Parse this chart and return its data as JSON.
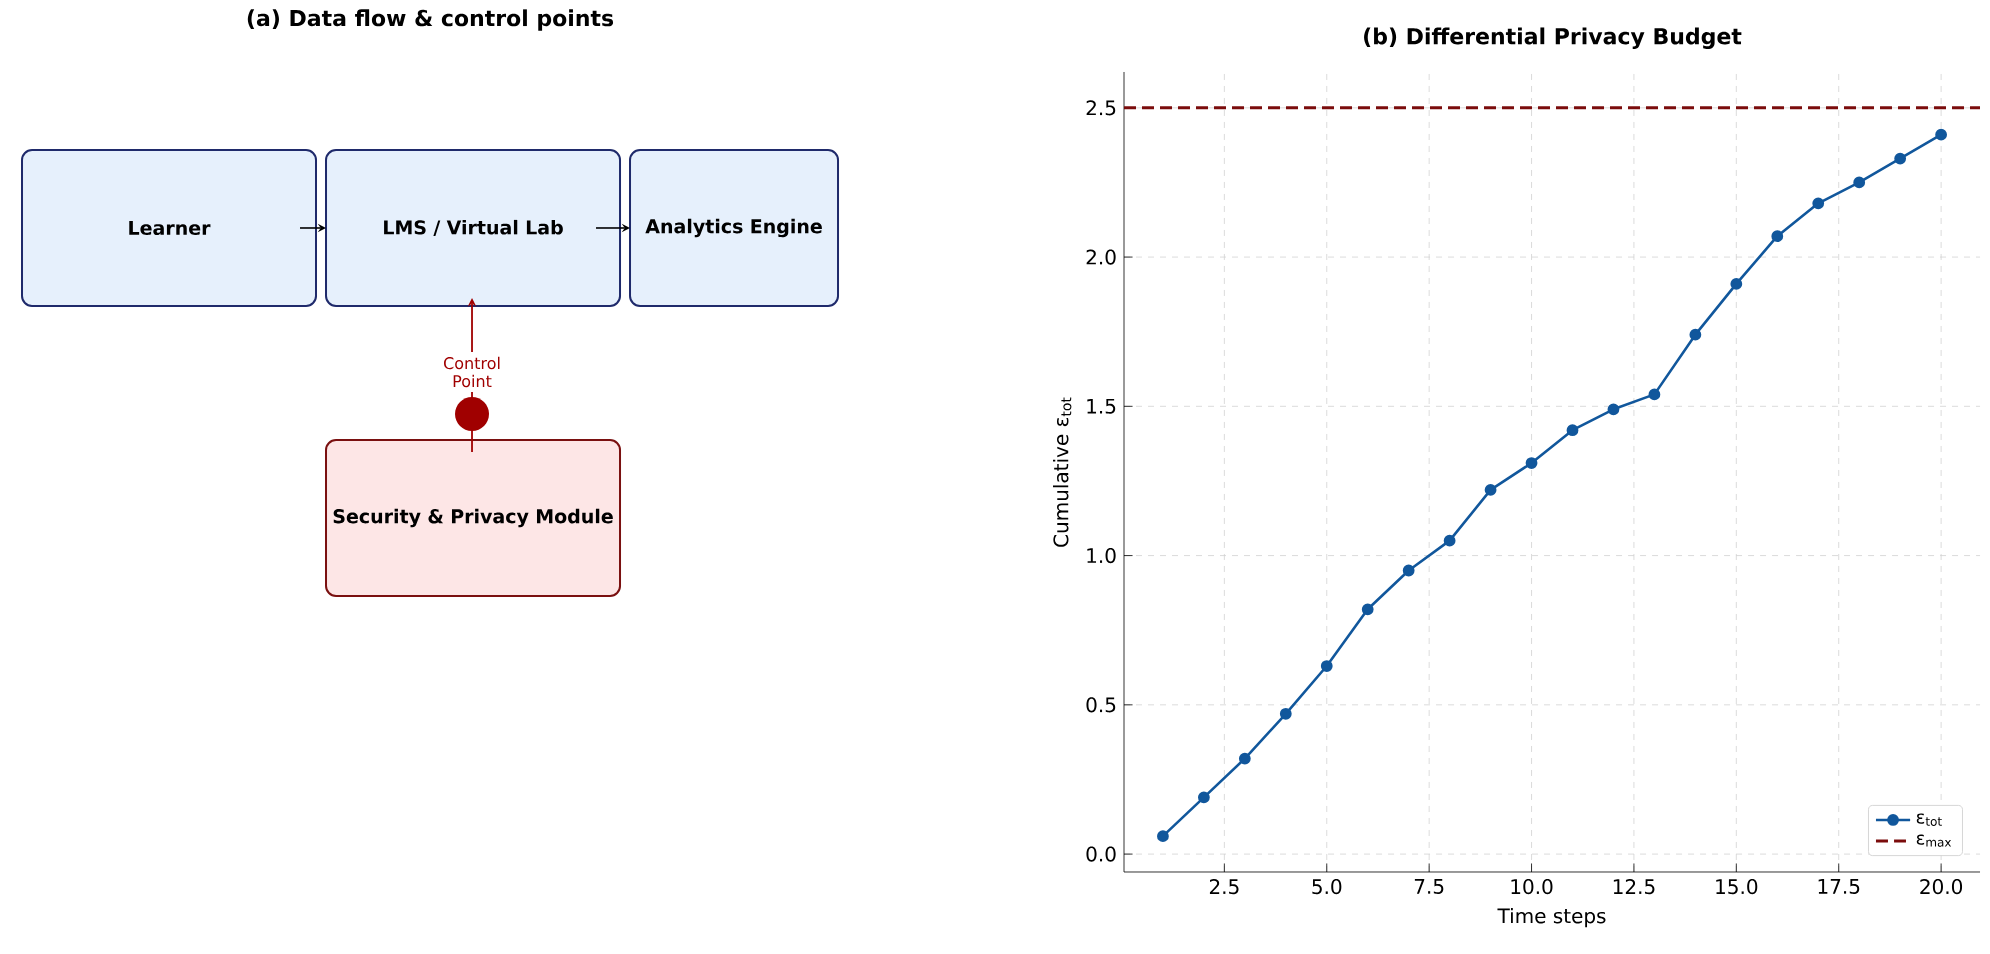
{
  "chart_data": [
    {
      "type": "other",
      "title": "(a) Data flow & control points",
      "annotations": [
        "Learner",
        "LMS / Virtual Lab",
        "Analytics Engine",
        "Control Point",
        "Security & Privacy Module"
      ]
    },
    {
      "type": "line",
      "title": "(b) Differential Privacy Budget",
      "xlabel": "Time steps",
      "ylabel": "Cumulative ε$_{tot}$",
      "x": [
        1,
        2,
        3,
        4,
        5,
        6,
        7,
        8,
        9,
        10,
        11,
        12,
        13,
        14,
        15,
        16,
        17,
        18,
        19,
        20
      ],
      "series": [
        {
          "name": "ε$_{tot}$",
          "color": "#11579c",
          "values": [
            0.06,
            0.19,
            0.32,
            0.47,
            0.63,
            0.82,
            0.95,
            1.05,
            1.22,
            1.31,
            1.42,
            1.49,
            1.54,
            1.74,
            1.91,
            2.07,
            2.18,
            2.25,
            2.33,
            2.41
          ]
        }
      ],
      "ref_lines": [
        {
          "axis": "y",
          "value": 2.5,
          "label": "ε$_{max}$",
          "color": "#7b0c0c",
          "line_style": "dashed"
        }
      ],
      "xlim": [
        0.05,
        20.95
      ],
      "ylim": [
        -0.06,
        2.62
      ],
      "xticks": [
        {
          "value": 2.5,
          "label": "2.5"
        },
        {
          "value": 5,
          "label": "5.0"
        },
        {
          "value": 7.5,
          "label": "7.5"
        },
        {
          "value": 10,
          "label": "10.0"
        },
        {
          "value": 12.5,
          "label": "12.5"
        },
        {
          "value": 15,
          "label": "15.0"
        },
        {
          "value": 17.5,
          "label": "17.5"
        },
        {
          "value": 20,
          "label": "20.0"
        }
      ],
      "yticks": [
        {
          "value": 0,
          "label": "0.0"
        },
        {
          "value": 0.5,
          "label": "0.5"
        },
        {
          "value": 1,
          "label": "1.0"
        },
        {
          "value": 1.5,
          "label": "1.5"
        },
        {
          "value": 2,
          "label": "2.0"
        },
        {
          "value": 2.5,
          "label": "2.5"
        }
      ],
      "grid": true,
      "legend": "bottom right",
      "marker": "circle",
      "line_style": "solid"
    }
  ]
}
